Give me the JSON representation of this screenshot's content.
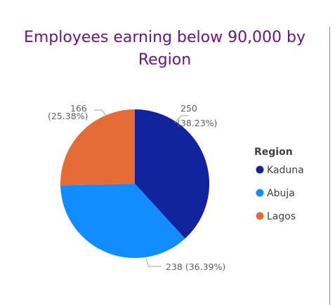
{
  "chart_data": {
    "type": "pie",
    "title": "Employees earning below 90,000 by Region",
    "legend_title": "Region",
    "legend_position": "right",
    "slices": [
      {
        "label": "Kaduna",
        "value": 250,
        "percent_label": "(38.23%)",
        "color": "#12239e"
      },
      {
        "label": "Abuja",
        "value": 238,
        "percent_label": "(36.39%)",
        "color": "#118dff"
      },
      {
        "label": "Lagos",
        "value": 166,
        "percent_label": "(25.38%)",
        "color": "#e66c37"
      }
    ]
  }
}
